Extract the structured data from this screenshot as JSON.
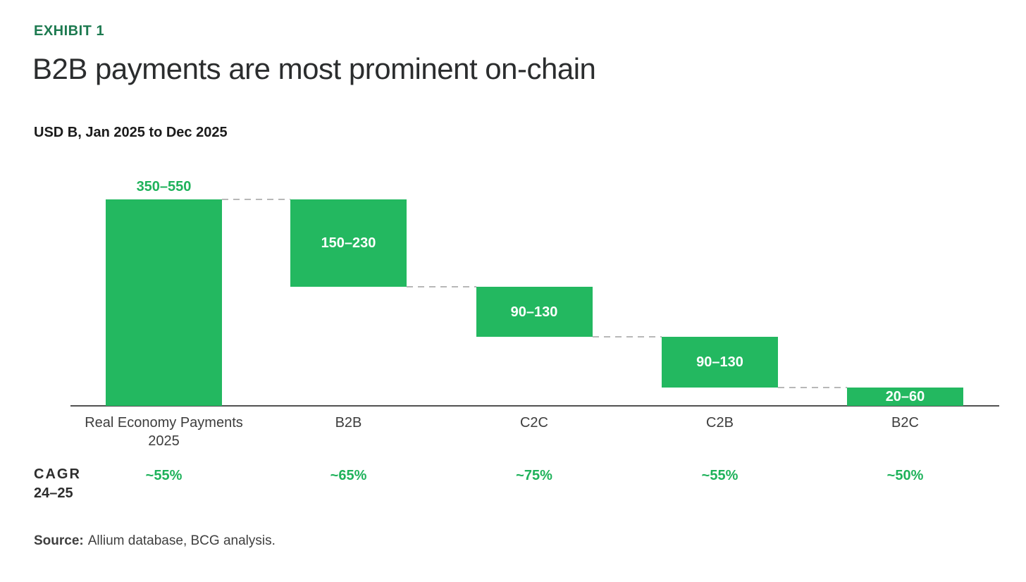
{
  "page": {
    "eyebrow": "EXHIBIT 1",
    "title": "B2B payments are most prominent on-chain",
    "subtitle": "USD B, Jan 2025 to Dec 2025",
    "source": {
      "label": "Source:",
      "text": "Allium database, BCG analysis."
    }
  },
  "colors": {
    "bar_green": "#23b860",
    "eyebrow_green": "#1d7a50",
    "value_label_green": "#1fb25b",
    "axis_gray": "#515151",
    "connector_gray": "#b8b8b8",
    "text_dark": "#2d2d2d"
  },
  "chart_data": {
    "type": "bar",
    "subtype": "waterfall",
    "title": "B2B payments are most prominent on-chain",
    "units_label": "USD B, Jan 2025 to Dec 2025",
    "xlabel": "",
    "ylabel": "USD B",
    "ylim": [
      0,
      550
    ],
    "grid": false,
    "legend": false,
    "categories": [
      "Real Economy Payments 2025",
      "B2B",
      "C2C",
      "C2B",
      "B2C"
    ],
    "segments": [
      {
        "category": "Real Economy Payments 2025",
        "label": "350–550",
        "lo": 350,
        "hi": 550,
        "role": "total",
        "label_position": "above"
      },
      {
        "category": "B2B",
        "label": "150–230",
        "lo": 150,
        "hi": 230,
        "role": "component",
        "label_position": "inside"
      },
      {
        "category": "C2C",
        "label": "90–130",
        "lo": 90,
        "hi": 130,
        "role": "component",
        "label_position": "inside"
      },
      {
        "category": "C2B",
        "label": "90–130",
        "lo": 90,
        "hi": 130,
        "role": "component",
        "label_position": "inside"
      },
      {
        "category": "B2C",
        "label": "20–60",
        "lo": 20,
        "hi": 60,
        "role": "component",
        "label_position": "inside"
      }
    ],
    "cagr": {
      "row_label": [
        "CAGR",
        "24–25"
      ],
      "values": [
        "~55%",
        "~65%",
        "~75%",
        "~55%",
        "~50%"
      ]
    }
  }
}
